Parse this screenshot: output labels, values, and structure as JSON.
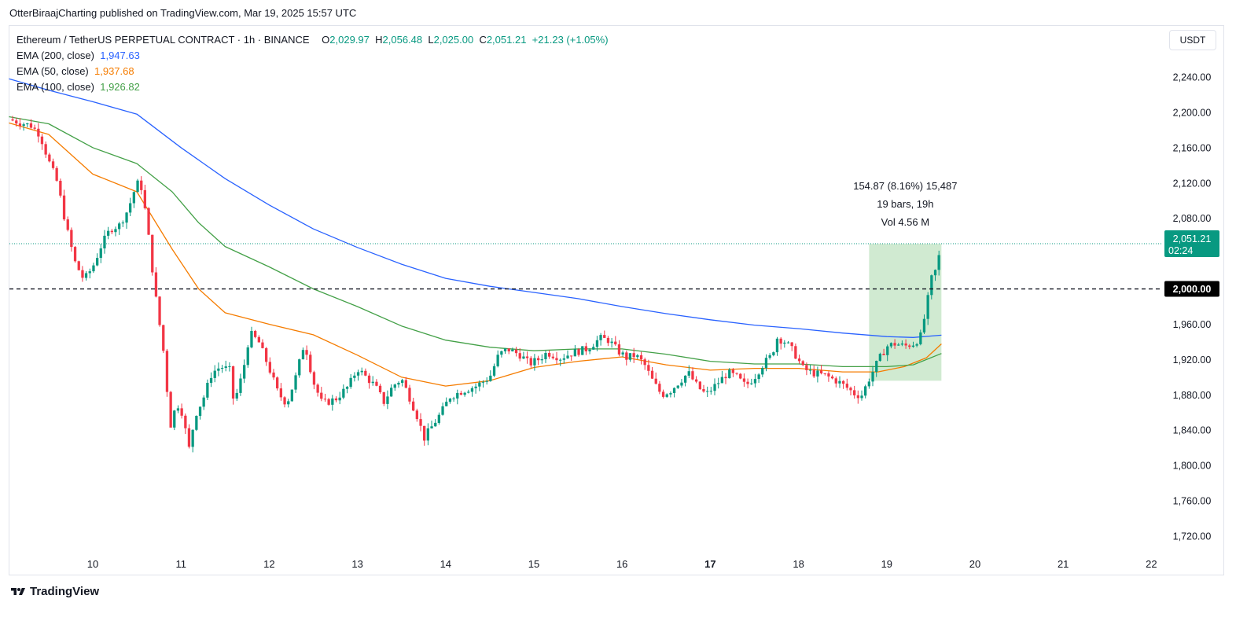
{
  "header": {
    "publisher_line": "OtterBiraajCharting published on TradingView.com, Mar 19, 2025 15:57 UTC"
  },
  "legend": {
    "symbol": "Ethereum / TetherUS PERPETUAL CONTRACT · 1h · BINANCE",
    "o_label": "O",
    "o_value": "2,029.97",
    "h_label": "H",
    "h_value": "2,056.48",
    "l_label": "L",
    "l_value": "2,025.00",
    "c_label": "C",
    "c_value": "2,051.21",
    "change": "+21.23 (+1.05%)",
    "ema200_label": "EMA (200, close)",
    "ema200_value": "1,947.63",
    "ema50_label": "EMA (50, close)",
    "ema50_value": "1,937.68",
    "ema100_label": "EMA (100, close)",
    "ema100_value": "1,926.82"
  },
  "currency_button": "USDT",
  "footer": {
    "brand": "TradingView"
  },
  "colors": {
    "up": "#089981",
    "down": "#f23645",
    "ema200": "#2962ff",
    "ema50": "#f57c00",
    "ema100": "#43a047",
    "measure_fill": "#c8e6c9"
  },
  "chart_data": {
    "type": "candlestick",
    "title": "Ethereum / TetherUS PERPETUAL CONTRACT · 1h · BINANCE",
    "ylabel": "USDT",
    "ylim": [
      1690,
      2280
    ],
    "y_ticks": [
      "2,240.00",
      "2,200.00",
      "2,160.00",
      "2,120.00",
      "2,080.00",
      "2,000.00",
      "1,960.00",
      "1,920.00",
      "1,880.00",
      "1,840.00",
      "1,800.00",
      "1,760.00",
      "1,720.00"
    ],
    "y_tick_values": [
      2240,
      2200,
      2160,
      2120,
      2080,
      2000,
      1960,
      1920,
      1880,
      1840,
      1800,
      1760,
      1720
    ],
    "x_ticks": [
      "10",
      "11",
      "12",
      "13",
      "14",
      "15",
      "16",
      "17",
      "18",
      "19",
      "20",
      "21",
      "22"
    ],
    "x_tick_bold": [
      false,
      false,
      false,
      false,
      false,
      false,
      false,
      true,
      false,
      false,
      false,
      false,
      false
    ],
    "x_tick_days": [
      10,
      11,
      12,
      13,
      14,
      15,
      16,
      17,
      18,
      19,
      20,
      21,
      22
    ],
    "x_start_day": 9.05,
    "x_end_day": 22.1,
    "last_day": 19.62,
    "last_price": 2051.21,
    "last_price_label": "2,051.21",
    "countdown_label": "02:24",
    "horizontal_line": {
      "value": 2000,
      "label": "2,000.00"
    },
    "price_path": [
      [
        9.05,
        2192
      ],
      [
        9.3,
        2185
      ],
      [
        9.4,
        2175
      ],
      [
        9.5,
        2145
      ],
      [
        9.6,
        2120
      ],
      [
        9.7,
        2070
      ],
      [
        9.8,
        2030
      ],
      [
        9.9,
        2010
      ],
      [
        10.0,
        2025
      ],
      [
        10.1,
        2050
      ],
      [
        10.2,
        2068
      ],
      [
        10.3,
        2072
      ],
      [
        10.4,
        2090
      ],
      [
        10.5,
        2120
      ],
      [
        10.55,
        2115
      ],
      [
        10.6,
        2085
      ],
      [
        10.65,
        2045
      ],
      [
        10.7,
        2000
      ],
      [
        10.8,
        1930
      ],
      [
        10.88,
        1845
      ],
      [
        10.95,
        1870
      ],
      [
        11.0,
        1865
      ],
      [
        11.05,
        1840
      ],
      [
        11.1,
        1815
      ],
      [
        11.15,
        1855
      ],
      [
        11.25,
        1875
      ],
      [
        11.35,
        1905
      ],
      [
        11.45,
        1912
      ],
      [
        11.55,
        1908
      ],
      [
        11.6,
        1870
      ],
      [
        11.7,
        1905
      ],
      [
        11.78,
        1950
      ],
      [
        11.88,
        1940
      ],
      [
        12.0,
        1910
      ],
      [
        12.1,
        1882
      ],
      [
        12.2,
        1870
      ],
      [
        12.3,
        1900
      ],
      [
        12.4,
        1940
      ],
      [
        12.5,
        1895
      ],
      [
        12.6,
        1870
      ],
      [
        12.75,
        1875
      ],
      [
        12.9,
        1890
      ],
      [
        13.0,
        1910
      ],
      [
        13.1,
        1900
      ],
      [
        13.2,
        1890
      ],
      [
        13.3,
        1872
      ],
      [
        13.4,
        1890
      ],
      [
        13.5,
        1898
      ],
      [
        13.6,
        1875
      ],
      [
        13.7,
        1850
      ],
      [
        13.75,
        1830
      ],
      [
        13.85,
        1845
      ],
      [
        13.95,
        1860
      ],
      [
        14.05,
        1878
      ],
      [
        14.2,
        1885
      ],
      [
        14.35,
        1890
      ],
      [
        14.5,
        1900
      ],
      [
        14.6,
        1925
      ],
      [
        14.7,
        1932
      ],
      [
        14.85,
        1925
      ],
      [
        14.95,
        1915
      ],
      [
        15.05,
        1920
      ],
      [
        15.15,
        1928
      ],
      [
        15.3,
        1922
      ],
      [
        15.45,
        1928
      ],
      [
        15.6,
        1932
      ],
      [
        15.75,
        1944
      ],
      [
        15.85,
        1942
      ],
      [
        15.95,
        1930
      ],
      [
        16.05,
        1922
      ],
      [
        16.15,
        1925
      ],
      [
        16.25,
        1915
      ],
      [
        16.35,
        1895
      ],
      [
        16.45,
        1880
      ],
      [
        16.55,
        1885
      ],
      [
        16.65,
        1895
      ],
      [
        16.75,
        1905
      ],
      [
        16.85,
        1890
      ],
      [
        16.95,
        1880
      ],
      [
        17.05,
        1890
      ],
      [
        17.2,
        1905
      ],
      [
        17.3,
        1900
      ],
      [
        17.4,
        1890
      ],
      [
        17.5,
        1900
      ],
      [
        17.6,
        1915
      ],
      [
        17.7,
        1925
      ],
      [
        17.75,
        1945
      ],
      [
        17.85,
        1940
      ],
      [
        17.95,
        1928
      ],
      [
        18.05,
        1910
      ],
      [
        18.15,
        1905
      ],
      [
        18.3,
        1902
      ],
      [
        18.45,
        1895
      ],
      [
        18.55,
        1888
      ],
      [
        18.65,
        1880
      ],
      [
        18.72,
        1880
      ],
      [
        18.8,
        1898
      ],
      [
        18.9,
        1918
      ],
      [
        19.0,
        1935
      ],
      [
        19.1,
        1938
      ],
      [
        19.2,
        1935
      ],
      [
        19.3,
        1938
      ],
      [
        19.38,
        1945
      ],
      [
        19.45,
        1978
      ],
      [
        19.5,
        2010
      ],
      [
        19.55,
        2020
      ],
      [
        19.6,
        2040
      ],
      [
        19.62,
        2051
      ]
    ],
    "series": [
      {
        "name": "EMA (200, close)",
        "values": [
          [
            9.05,
            2238
          ],
          [
            9.5,
            2225
          ],
          [
            10.0,
            2212
          ],
          [
            10.5,
            2198
          ],
          [
            11.0,
            2160
          ],
          [
            11.5,
            2125
          ],
          [
            12.0,
            2095
          ],
          [
            12.5,
            2068
          ],
          [
            13.0,
            2047
          ],
          [
            13.5,
            2028
          ],
          [
            14.0,
            2012
          ],
          [
            14.5,
            2003
          ],
          [
            15.0,
            1996
          ],
          [
            15.5,
            1989
          ],
          [
            16.0,
            1980
          ],
          [
            16.5,
            1972
          ],
          [
            17.0,
            1965
          ],
          [
            17.5,
            1959
          ],
          [
            18.0,
            1955
          ],
          [
            18.5,
            1950
          ],
          [
            19.0,
            1946
          ],
          [
            19.3,
            1945
          ],
          [
            19.62,
            1947.63
          ]
        ]
      },
      {
        "name": "EMA (50, close)",
        "values": [
          [
            9.05,
            2188
          ],
          [
            9.5,
            2175
          ],
          [
            10.0,
            2130
          ],
          [
            10.5,
            2110
          ],
          [
            10.9,
            2045
          ],
          [
            11.2,
            2000
          ],
          [
            11.5,
            1973
          ],
          [
            12.0,
            1960
          ],
          [
            12.5,
            1948
          ],
          [
            13.0,
            1925
          ],
          [
            13.5,
            1900
          ],
          [
            14.0,
            1890
          ],
          [
            14.5,
            1896
          ],
          [
            15.0,
            1911
          ],
          [
            15.5,
            1918
          ],
          [
            16.0,
            1923
          ],
          [
            16.5,
            1914
          ],
          [
            17.0,
            1908
          ],
          [
            17.5,
            1910
          ],
          [
            18.0,
            1910
          ],
          [
            18.5,
            1906
          ],
          [
            18.9,
            1906
          ],
          [
            19.2,
            1912
          ],
          [
            19.45,
            1922
          ],
          [
            19.62,
            1937.68
          ]
        ]
      },
      {
        "name": "EMA (100, close)",
        "values": [
          [
            9.05,
            2195
          ],
          [
            9.5,
            2187
          ],
          [
            10.0,
            2160
          ],
          [
            10.5,
            2142
          ],
          [
            10.9,
            2110
          ],
          [
            11.2,
            2075
          ],
          [
            11.5,
            2048
          ],
          [
            12.0,
            2025
          ],
          [
            12.5,
            2000
          ],
          [
            13.0,
            1980
          ],
          [
            13.5,
            1958
          ],
          [
            14.0,
            1942
          ],
          [
            14.5,
            1934
          ],
          [
            15.0,
            1930
          ],
          [
            15.5,
            1932
          ],
          [
            16.0,
            1932
          ],
          [
            16.5,
            1926
          ],
          [
            17.0,
            1918
          ],
          [
            17.5,
            1915
          ],
          [
            18.0,
            1915
          ],
          [
            18.5,
            1912
          ],
          [
            19.0,
            1912
          ],
          [
            19.3,
            1914
          ],
          [
            19.62,
            1926.82
          ]
        ]
      }
    ],
    "measure_box": {
      "from_day": 18.8,
      "to_day": 19.62,
      "low": 1896,
      "high": 2051
    },
    "annotations": [
      "154.87 (8.16%) 15,487",
      "19 bars, 19h",
      "Vol 4.56 M"
    ]
  }
}
